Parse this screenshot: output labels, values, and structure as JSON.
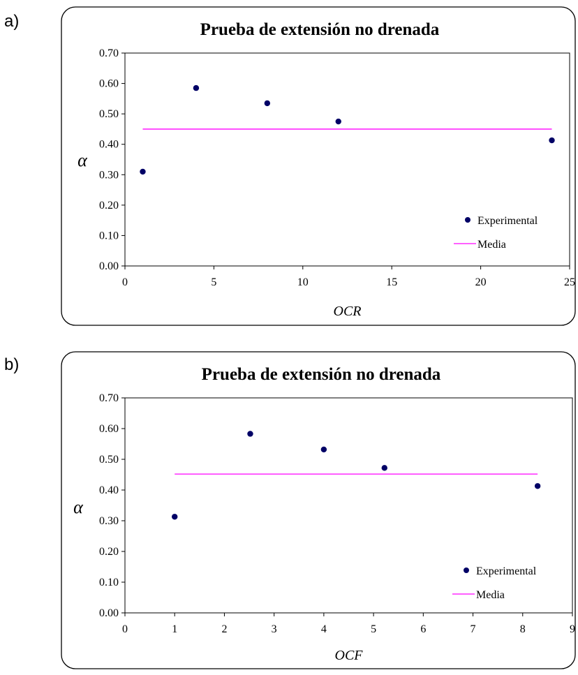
{
  "chart_data": [
    {
      "panel_label": "a)",
      "type": "scatter",
      "title": "Prueba de extensión no drenada",
      "xlabel": "OCR",
      "ylabel": "α",
      "xlim": [
        0,
        25
      ],
      "ylim": [
        0,
        0.7
      ],
      "xticks": [
        "0",
        "5",
        "10",
        "15",
        "20",
        "25"
      ],
      "yticks": [
        "0.00",
        "0.10",
        "0.20",
        "0.30",
        "0.40",
        "0.50",
        "0.60",
        "0.70"
      ],
      "grid": false,
      "legend_position": "bottom-right",
      "series": [
        {
          "name": "Experimental",
          "kind": "points",
          "color": "#000066",
          "x": [
            1,
            4,
            8,
            12,
            24
          ],
          "y": [
            0.31,
            0.585,
            0.535,
            0.475,
            0.413
          ]
        },
        {
          "name": "Media",
          "kind": "line",
          "color": "#ff00ff",
          "x": [
            1,
            24
          ],
          "y": [
            0.45,
            0.45
          ]
        }
      ]
    },
    {
      "panel_label": "b)",
      "type": "scatter",
      "title": "Prueba de extensión no drenada",
      "xlabel": "OCF",
      "ylabel": "α",
      "xlim": [
        0,
        9
      ],
      "ylim": [
        0,
        0.7
      ],
      "xticks": [
        "0",
        "1",
        "2",
        "3",
        "4",
        "5",
        "6",
        "7",
        "8",
        "9"
      ],
      "yticks": [
        "0.00",
        "0.10",
        "0.20",
        "0.30",
        "0.40",
        "0.50",
        "0.60",
        "0.70"
      ],
      "grid": false,
      "legend_position": "bottom-right",
      "series": [
        {
          "name": "Experimental",
          "kind": "points",
          "color": "#000066",
          "x": [
            1,
            2.52,
            4,
            5.22,
            8.3
          ],
          "y": [
            0.313,
            0.583,
            0.532,
            0.472,
            0.413
          ]
        },
        {
          "name": "Media",
          "kind": "line",
          "color": "#ff00ff",
          "x": [
            1,
            8.3
          ],
          "y": [
            0.452,
            0.452
          ]
        }
      ]
    }
  ]
}
